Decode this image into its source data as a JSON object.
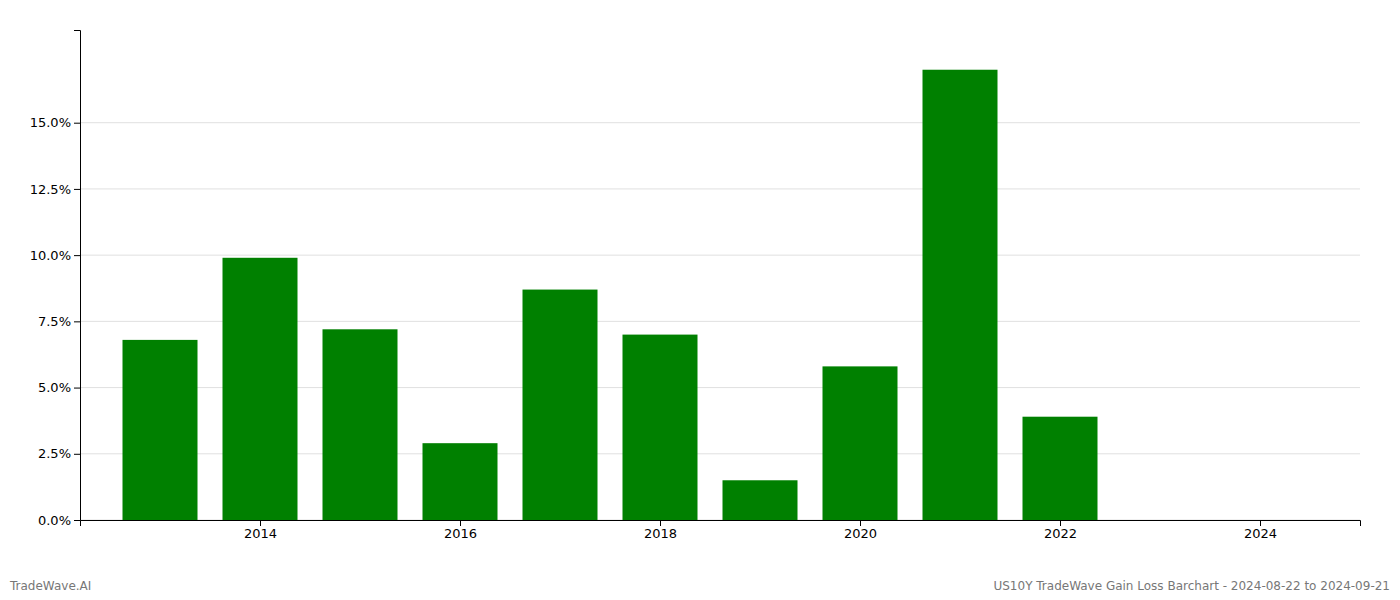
{
  "chart_data": {
    "type": "bar",
    "x": [
      2013,
      2014,
      2015,
      2016,
      2017,
      2018,
      2019,
      2020,
      2021,
      2022
    ],
    "values": [
      0.068,
      0.099,
      0.072,
      0.029,
      0.087,
      0.07,
      0.015,
      0.058,
      0.17,
      0.039
    ],
    "color": "#008000",
    "xlim": [
      2012.2,
      2025.0
    ],
    "xticks": [
      2014,
      2016,
      2018,
      2020,
      2022,
      2024
    ],
    "ylim": [
      0.0,
      0.185
    ],
    "yticks": [
      {
        "value": 0.0,
        "label": "0.0%"
      },
      {
        "value": 0.025,
        "label": "2.5%"
      },
      {
        "value": 0.05,
        "label": "5.0%"
      },
      {
        "value": 0.075,
        "label": "7.5%"
      },
      {
        "value": 0.1,
        "label": "10.0%"
      },
      {
        "value": 0.125,
        "label": "12.5%"
      },
      {
        "value": 0.15,
        "label": "15.0%"
      }
    ],
    "grid": true,
    "annotations": [
      "TradeWave.AI",
      "US10Y TradeWave Gain Loss Barchart - 2024-08-22 to 2024-09-21"
    ]
  }
}
